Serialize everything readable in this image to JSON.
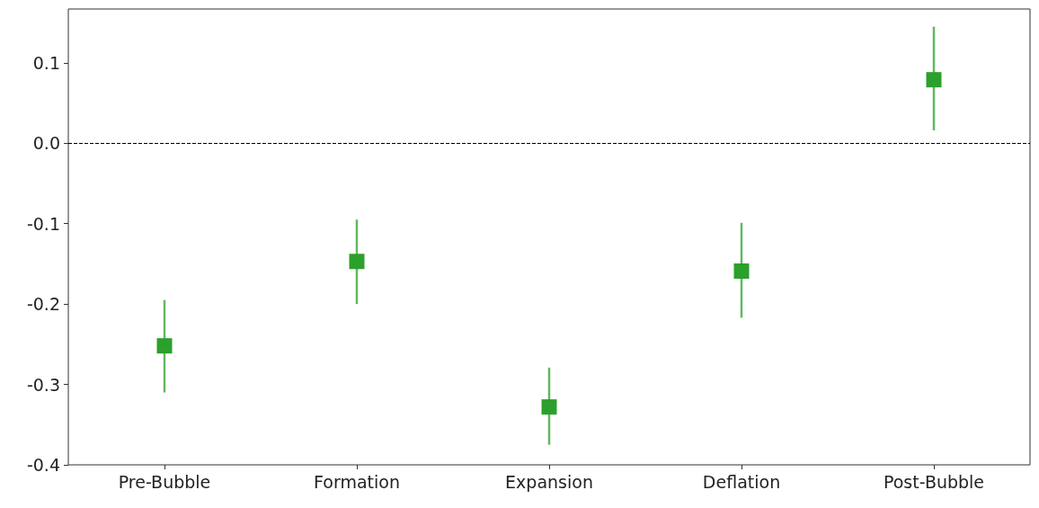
{
  "chart_data": {
    "type": "scatter",
    "categories": [
      "Pre-Bubble",
      "Formation",
      "Expansion",
      "Deflation",
      "Post-Bubble"
    ],
    "values": [
      -0.252,
      -0.147,
      -0.328,
      -0.159,
      0.079
    ],
    "errors": [
      [
        -0.31,
        -0.195
      ],
      [
        -0.2,
        -0.095
      ],
      [
        -0.375,
        -0.279
      ],
      [
        -0.217,
        -0.099
      ],
      [
        0.016,
        0.145
      ]
    ],
    "color": "#2ca02c",
    "marker": "square",
    "grid": false,
    "ylim": [
      -0.4,
      0.167
    ],
    "yticks": [
      -0.4,
      -0.3,
      -0.2,
      -0.1,
      {
        "value": 0,
        "label": "0.0"
      },
      0.1
    ],
    "ref_lines": [
      {
        "axis": "y",
        "value": 0,
        "color": "#000000",
        "line_style": "dashed"
      }
    ]
  }
}
